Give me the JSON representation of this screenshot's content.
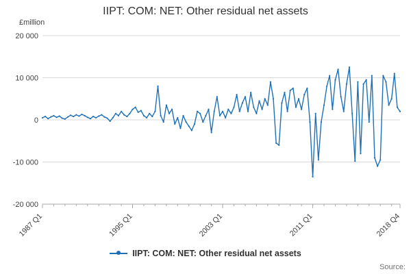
{
  "title": "IIPT: COM: NET: Other residual net assets",
  "y_unit_label": "£million",
  "legend": {
    "label": "IIPT: COM: NET: Other residual net assets"
  },
  "source_label": "Source:",
  "colors": {
    "line": "#1d70b8",
    "grid": "#d9d9d9",
    "axis": "#a8a8a8",
    "tick_text": "#414042"
  },
  "chart_data": {
    "type": "line",
    "title": "IIPT: COM: NET: Other residual net assets",
    "xlabel": "",
    "ylabel": "£million",
    "ylim": [
      -20000,
      20000
    ],
    "grid": "horizontal",
    "legend_position": "bottom-center",
    "x_start": "1987 Q1",
    "x_end": "2018 Q4",
    "x_frequency": "quarterly",
    "yticks": [
      {
        "label": "20 000",
        "value": 20000
      },
      {
        "label": "10 000",
        "value": 10000
      },
      {
        "label": "0",
        "value": 0
      },
      {
        "label": "-10 000",
        "value": -10000
      },
      {
        "label": "-20 000",
        "value": -20000
      }
    ],
    "xticks": [
      {
        "label": "1987 Q1",
        "index": 0
      },
      {
        "label": "1995 Q1",
        "index": 32
      },
      {
        "label": "2003 Q1",
        "index": 64
      },
      {
        "label": "2011 Q1",
        "index": 96
      },
      {
        "label": "2018 Q4",
        "index": 127
      }
    ],
    "series": [
      {
        "name": "IIPT: COM: NET: Other residual net assets",
        "values": [
          500,
          800,
          300,
          700,
          1000,
          600,
          900,
          400,
          200,
          700,
          1100,
          800,
          1200,
          900,
          1300,
          1000,
          600,
          300,
          800,
          500,
          900,
          1200,
          700,
          400,
          -300,
          500,
          1500,
          1000,
          2000,
          1200,
          800,
          1500,
          2500,
          3000,
          1800,
          2200,
          1000,
          500,
          1500,
          800,
          2000,
          8000,
          1000,
          -500,
          3500,
          1500,
          2500,
          -1000,
          500,
          -2000,
          1000,
          -500,
          -1500,
          -2500,
          -1000,
          2000,
          1500,
          -500,
          1000,
          2500,
          -3000,
          2000,
          5500,
          1000,
          2000,
          500,
          2500,
          1500,
          3000,
          6000,
          2000,
          4000,
          5500,
          2000,
          6500,
          3000,
          1500,
          4500,
          2500,
          5000,
          3500,
          9000,
          5000,
          -5500,
          -6000,
          4000,
          6500,
          2000,
          7000,
          7500,
          3000,
          5000,
          2500,
          6000,
          7500,
          -500,
          -13500,
          1500,
          -9500,
          -500,
          3500,
          8000,
          10500,
          2500,
          9500,
          12000,
          5500,
          2000,
          8500,
          12500,
          1500,
          -9800,
          9000,
          -8000,
          8500,
          9500,
          -500,
          10500,
          -9000,
          -11000,
          -9500,
          10500,
          9000,
          3500,
          5000,
          11000,
          3000,
          2000
        ]
      }
    ]
  }
}
